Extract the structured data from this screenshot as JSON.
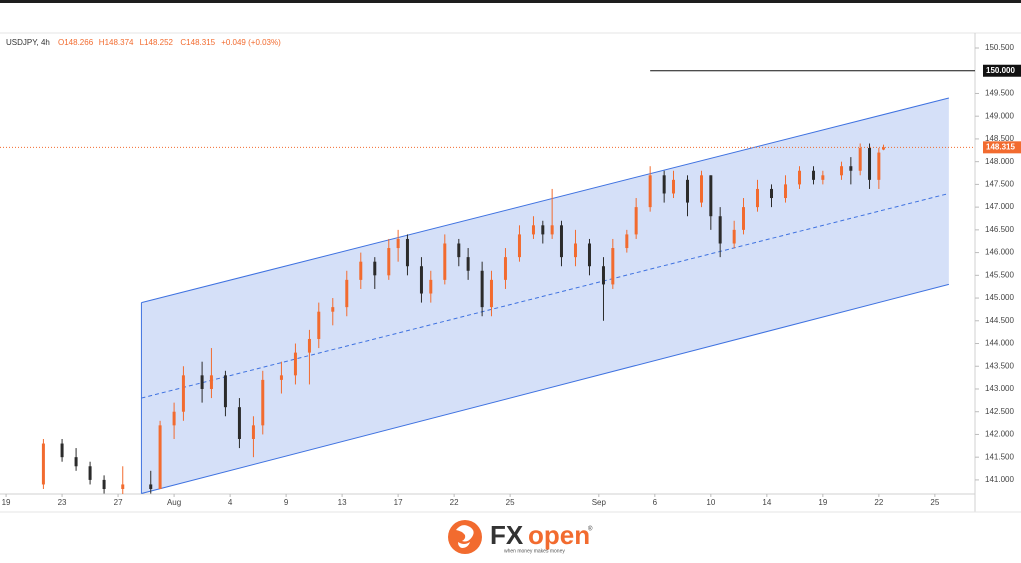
{
  "chart_data": {
    "type": "candlestick",
    "symbol_text": "USDJPY, 4h",
    "ohlc_labels": [
      "O148.266",
      "H148.374",
      "L148.252",
      "C148.315"
    ],
    "change_label": "+0.049 (+0.03%)",
    "x": [
      8,
      12,
      15,
      18,
      21,
      25,
      31,
      33,
      36,
      38,
      42,
      44,
      47,
      50,
      53,
      55,
      59,
      62,
      65,
      67,
      70,
      73,
      76,
      79,
      82,
      84,
      86,
      89,
      91,
      94,
      97,
      99,
      102,
      104,
      107,
      110,
      113,
      115,
      117,
      119,
      122,
      125,
      128,
      130,
      133,
      135,
      138,
      141,
      143,
      146,
      149,
      151,
      153,
      156,
      158,
      161,
      164,
      167,
      170,
      173,
      175,
      179,
      181,
      183,
      185,
      187,
      188
    ],
    "open": [
      140.9,
      141.8,
      141.5,
      141.3,
      141.0,
      140.8,
      140.9,
      140.8,
      142.2,
      142.5,
      143.3,
      143.0,
      143.3,
      142.6,
      141.9,
      142.2,
      143.2,
      143.3,
      143.8,
      144.1,
      144.7,
      144.8,
      145.4,
      145.8,
      145.5,
      146.1,
      146.3,
      145.7,
      145.1,
      145.4,
      146.2,
      145.9,
      145.6,
      144.8,
      145.4,
      145.9,
      146.4,
      146.6,
      146.4,
      146.6,
      145.9,
      146.2,
      145.7,
      145.3,
      146.1,
      146.4,
      147.0,
      147.7,
      147.3,
      147.6,
      147.1,
      147.7,
      146.8,
      146.2,
      146.5,
      147.0,
      147.4,
      147.2,
      147.5,
      147.8,
      147.6,
      147.7,
      147.9,
      147.8,
      148.3,
      147.6,
      148.266
    ],
    "high": [
      141.9,
      141.9,
      141.7,
      141.4,
      141.1,
      141.3,
      141.2,
      142.3,
      142.7,
      143.5,
      143.6,
      143.9,
      143.4,
      142.8,
      142.4,
      143.4,
      143.6,
      144.0,
      144.3,
      144.9,
      145.0,
      145.6,
      146.0,
      145.9,
      146.3,
      146.5,
      146.4,
      145.9,
      145.6,
      146.4,
      146.3,
      146.1,
      145.8,
      145.6,
      146.1,
      146.6,
      146.8,
      146.7,
      147.4,
      146.7,
      146.5,
      146.3,
      145.9,
      146.3,
      146.5,
      147.2,
      147.9,
      147.8,
      147.8,
      147.7,
      147.8,
      147.7,
      147.0,
      146.7,
      147.2,
      147.6,
      147.5,
      147.7,
      147.9,
      147.9,
      147.8,
      148.0,
      148.1,
      148.4,
      148.4,
      148.3,
      148.374
    ],
    "low": [
      140.8,
      141.4,
      141.2,
      140.9,
      140.7,
      140.6,
      140.7,
      140.8,
      141.9,
      142.3,
      142.7,
      142.8,
      142.4,
      141.7,
      141.5,
      142.0,
      142.9,
      143.1,
      143.1,
      143.9,
      144.4,
      144.6,
      145.2,
      145.2,
      145.4,
      145.8,
      145.5,
      144.9,
      144.9,
      145.3,
      145.7,
      145.4,
      144.6,
      144.6,
      145.2,
      145.8,
      146.3,
      146.2,
      146.3,
      145.7,
      145.7,
      145.5,
      144.5,
      145.2,
      146.0,
      146.3,
      146.9,
      147.1,
      147.2,
      146.8,
      147.0,
      146.5,
      145.9,
      146.1,
      146.4,
      146.9,
      147.0,
      147.1,
      147.4,
      147.5,
      147.5,
      147.6,
      147.5,
      147.7,
      147.4,
      147.4,
      148.252
    ],
    "close": [
      141.8,
      141.5,
      141.3,
      141.0,
      140.8,
      140.9,
      140.8,
      142.2,
      142.5,
      143.3,
      143.0,
      143.3,
      142.6,
      141.9,
      142.2,
      143.2,
      143.3,
      143.8,
      144.1,
      144.7,
      144.8,
      145.4,
      145.8,
      145.5,
      146.1,
      146.3,
      145.7,
      145.1,
      145.4,
      146.2,
      145.9,
      145.6,
      144.8,
      145.4,
      145.9,
      146.4,
      146.6,
      146.4,
      146.6,
      145.9,
      146.2,
      145.7,
      145.3,
      146.1,
      146.4,
      147.0,
      147.7,
      147.3,
      147.6,
      147.1,
      147.7,
      146.8,
      146.2,
      146.5,
      147.0,
      147.4,
      147.2,
      147.5,
      147.8,
      147.6,
      147.7,
      147.9,
      147.8,
      148.3,
      147.6,
      148.2,
      148.315
    ],
    "last_price_label": "148.315",
    "up_color": "#f26b2f",
    "down_color": "#2b2b2b",
    "xlim": [
      -1.3,
      207.6
    ],
    "xticks": [
      {
        "value": 0,
        "label": "19"
      },
      {
        "value": 12,
        "label": "23"
      },
      {
        "value": 24,
        "label": "27"
      },
      {
        "value": 36,
        "label": "Aug"
      },
      {
        "value": 48,
        "label": "4"
      },
      {
        "value": 60,
        "label": "9"
      },
      {
        "value": 72,
        "label": "13"
      },
      {
        "value": 84,
        "label": "17"
      },
      {
        "value": 96,
        "label": "22"
      },
      {
        "value": 108,
        "label": "25"
      },
      {
        "value": 127,
        "label": "Sep"
      },
      {
        "value": 139,
        "label": "6"
      },
      {
        "value": 151,
        "label": "10"
      },
      {
        "value": 163,
        "label": "14"
      },
      {
        "value": 175,
        "label": "19"
      },
      {
        "value": 187,
        "label": "22"
      },
      {
        "value": 199,
        "label": "25"
      }
    ],
    "ylim": [
      140.69,
      150.83
    ],
    "yticks": [
      {
        "value": 141,
        "label": "141.000"
      },
      {
        "value": 141.5,
        "label": "141.500"
      },
      {
        "value": 142,
        "label": "142.000"
      },
      {
        "value": 142.5,
        "label": "142.500"
      },
      {
        "value": 143,
        "label": "143.000"
      },
      {
        "value": 143.5,
        "label": "143.500"
      },
      {
        "value": 144,
        "label": "144.000"
      },
      {
        "value": 144.5,
        "label": "144.500"
      },
      {
        "value": 145,
        "label": "145.000"
      },
      {
        "value": 145.5,
        "label": "145.500"
      },
      {
        "value": 146,
        "label": "146.000"
      },
      {
        "value": 146.5,
        "label": "146.500"
      },
      {
        "value": 147,
        "label": "147.000"
      },
      {
        "value": 147.5,
        "label": "147.500"
      },
      {
        "value": 148,
        "label": "148.000"
      },
      {
        "value": 148.5,
        "label": "148.500"
      },
      {
        "value": 149,
        "label": "149.000"
      },
      {
        "value": 149.5,
        "label": "149.500"
      },
      {
        "value": 150.5,
        "label": "150.500"
      }
    ],
    "channel": {
      "color": "#3f72e0",
      "upper": [
        [
          29,
          144.9
        ],
        [
          202,
          149.4
        ]
      ],
      "mid": [
        [
          29,
          142.8
        ],
        [
          202,
          147.3
        ]
      ],
      "lower": [
        [
          29,
          140.7
        ],
        [
          202,
          145.3
        ]
      ]
    },
    "hline": {
      "value": 150,
      "label": "150.000",
      "x_start": 138
    }
  },
  "footer": {
    "brand_fx": "FX",
    "brand_open": "open",
    "registered": "®",
    "tagline": "when money makes money"
  }
}
